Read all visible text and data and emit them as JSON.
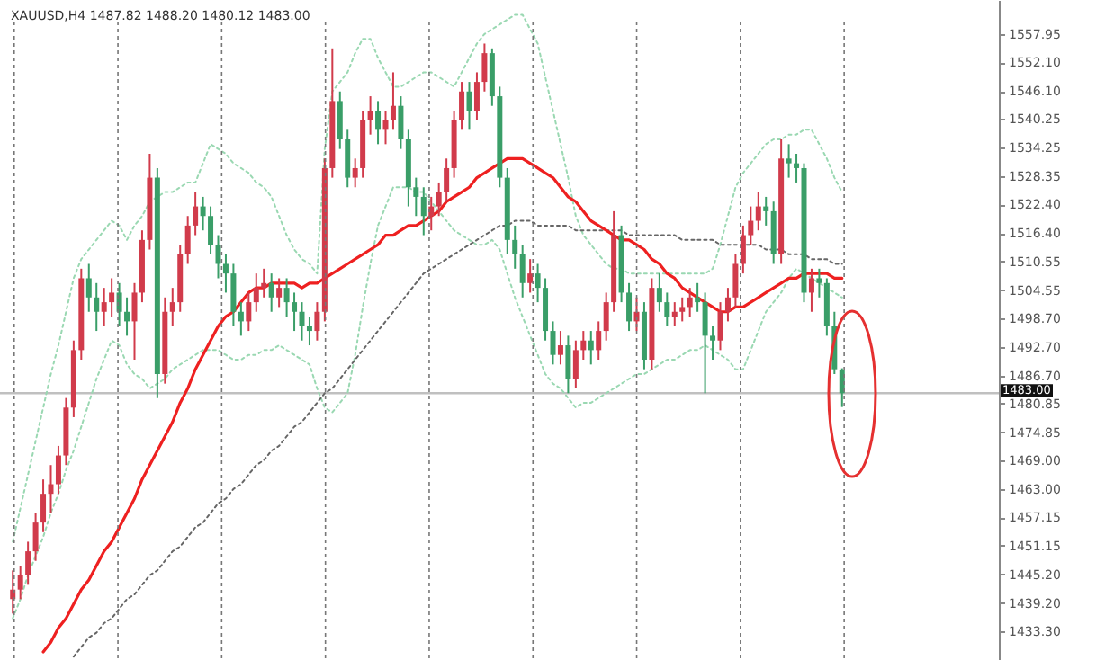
{
  "chart_data": {
    "type": "candlestick",
    "title": "XAUUSD,H4 1487.82 1488.20 1480.12 1483.00",
    "tick_labels": "y",
    "ylim": [
      1427.3,
      1565.1
    ],
    "yticks": [
      {
        "value": 1557.95,
        "label": "1557.95"
      },
      {
        "value": 1552.1,
        "label": "1552.10"
      },
      {
        "value": 1546.1,
        "label": "1546.10"
      },
      {
        "value": 1540.25,
        "label": "1540.25"
      },
      {
        "value": 1534.25,
        "label": "1534.25"
      },
      {
        "value": 1528.35,
        "label": "1528.35"
      },
      {
        "value": 1522.4,
        "label": "1522.40"
      },
      {
        "value": 1516.4,
        "label": "1516.40"
      },
      {
        "value": 1510.55,
        "label": "1510.55"
      },
      {
        "value": 1504.55,
        "label": "1504.55"
      },
      {
        "value": 1498.7,
        "label": "1498.70"
      },
      {
        "value": 1492.7,
        "label": "1492.70"
      },
      {
        "value": 1486.7,
        "label": "1486.70"
      },
      {
        "value": 1480.85,
        "label": "1480.85"
      },
      {
        "value": 1474.85,
        "label": "1474.85"
      },
      {
        "value": 1469,
        "label": "1469.00"
      },
      {
        "value": 1463,
        "label": "1463.00"
      },
      {
        "value": 1457.15,
        "label": "1457.15"
      },
      {
        "value": 1451.15,
        "label": "1451.15"
      },
      {
        "value": 1445.2,
        "label": "1445.20"
      },
      {
        "value": 1439.2,
        "label": "1439.20"
      },
      {
        "value": 1433.3,
        "label": "1433.30"
      }
    ],
    "categories": [
      null,
      null,
      null,
      null,
      null,
      null,
      null,
      null,
      null,
      null,
      null,
      null,
      null,
      null,
      null,
      null,
      null,
      null,
      null,
      null,
      null,
      null,
      null,
      null,
      null,
      null,
      null,
      null,
      null,
      null,
      null,
      null,
      null,
      null,
      null,
      null,
      null,
      null,
      null,
      null,
      null,
      null,
      null,
      null,
      null,
      null,
      null,
      null,
      null,
      null,
      null,
      null,
      null,
      null,
      null,
      null,
      null,
      null,
      null,
      null,
      null,
      null,
      null,
      null,
      null,
      null,
      null,
      null,
      null,
      null,
      null,
      null,
      null,
      null,
      null,
      null,
      null,
      null,
      null,
      null,
      null,
      null,
      null,
      null,
      null,
      null,
      null,
      null,
      null,
      null,
      null,
      null,
      null,
      null,
      null,
      null,
      null,
      null,
      null,
      null,
      null,
      null,
      null,
      null,
      null,
      null,
      null,
      null,
      null,
      null
    ],
    "ohlc": [
      [
        1440,
        1446,
        1437,
        1442
      ],
      [
        1442,
        1447,
        1440,
        1445
      ],
      [
        1445,
        1452,
        1443,
        1450
      ],
      [
        1450,
        1458,
        1448,
        1456
      ],
      [
        1456,
        1465,
        1454,
        1462
      ],
      [
        1462,
        1468,
        1458,
        1464
      ],
      [
        1464,
        1472,
        1462,
        1470
      ],
      [
        1470,
        1482,
        1468,
        1480
      ],
      [
        1480,
        1494,
        1478,
        1492
      ],
      [
        1492,
        1509,
        1490,
        1507
      ],
      [
        1507,
        1510,
        1500,
        1503
      ],
      [
        1503,
        1506,
        1496,
        1500
      ],
      [
        1500,
        1505,
        1497,
        1502
      ],
      [
        1502,
        1507,
        1499,
        1504
      ],
      [
        1504,
        1506,
        1497,
        1500
      ],
      [
        1500,
        1503,
        1495,
        1498
      ],
      [
        1498,
        1506,
        1490,
        1504
      ],
      [
        1504,
        1517,
        1502,
        1515
      ],
      [
        1515,
        1533,
        1513,
        1528
      ],
      [
        1528,
        1530,
        1482,
        1487
      ],
      [
        1487,
        1503,
        1485,
        1500
      ],
      [
        1500,
        1505,
        1497,
        1502
      ],
      [
        1502,
        1514,
        1500,
        1512
      ],
      [
        1512,
        1520,
        1510,
        1518
      ],
      [
        1518,
        1525,
        1516,
        1522
      ],
      [
        1522,
        1524,
        1517,
        1520
      ],
      [
        1520,
        1522,
        1512,
        1514
      ],
      [
        1514,
        1516,
        1507,
        1510
      ],
      [
        1510,
        1512,
        1504,
        1508
      ],
      [
        1508,
        1510,
        1497,
        1500
      ],
      [
        1500,
        1502,
        1495,
        1498
      ],
      [
        1498,
        1504,
        1496,
        1502
      ],
      [
        1502,
        1508,
        1500,
        1505
      ],
      [
        1505,
        1509,
        1503,
        1506
      ],
      [
        1506,
        1508,
        1500,
        1503
      ],
      [
        1503,
        1507,
        1501,
        1505
      ],
      [
        1505,
        1507,
        1499,
        1502
      ],
      [
        1502,
        1504,
        1496,
        1500
      ],
      [
        1500,
        1502,
        1494,
        1497
      ],
      [
        1497,
        1499,
        1493,
        1496
      ],
      [
        1496,
        1502,
        1494,
        1500
      ],
      [
        1500,
        1532,
        1498,
        1530
      ],
      [
        1530,
        1555,
        1528,
        1544
      ],
      [
        1544,
        1546,
        1534,
        1536
      ],
      [
        1536,
        1538,
        1526,
        1528
      ],
      [
        1528,
        1532,
        1526,
        1530
      ],
      [
        1530,
        1542,
        1528,
        1540
      ],
      [
        1540,
        1545,
        1537,
        1542
      ],
      [
        1542,
        1544,
        1535,
        1538
      ],
      [
        1538,
        1542,
        1535,
        1540
      ],
      [
        1540,
        1550,
        1538,
        1543
      ],
      [
        1543,
        1545,
        1534,
        1536
      ],
      [
        1536,
        1538,
        1522,
        1526
      ],
      [
        1526,
        1528,
        1520,
        1524
      ],
      [
        1524,
        1526,
        1516,
        1520
      ],
      [
        1520,
        1524,
        1517,
        1522
      ],
      [
        1522,
        1527,
        1520,
        1525
      ],
      [
        1525,
        1532,
        1523,
        1530
      ],
      [
        1530,
        1542,
        1528,
        1540
      ],
      [
        1540,
        1548,
        1538,
        1546
      ],
      [
        1546,
        1548,
        1538,
        1542
      ],
      [
        1542,
        1550,
        1540,
        1548
      ],
      [
        1548,
        1556,
        1546,
        1554
      ],
      [
        1554,
        1555,
        1543,
        1545
      ],
      [
        1545,
        1547,
        1526,
        1528
      ],
      [
        1528,
        1530,
        1512,
        1515
      ],
      [
        1515,
        1518,
        1509,
        1512
      ],
      [
        1512,
        1514,
        1503,
        1506
      ],
      [
        1506,
        1511,
        1504,
        1508
      ],
      [
        1508,
        1510,
        1502,
        1505
      ],
      [
        1505,
        1507,
        1494,
        1496
      ],
      [
        1496,
        1498,
        1489,
        1491
      ],
      [
        1491,
        1496,
        1489,
        1493
      ],
      [
        1493,
        1495,
        1483,
        1486
      ],
      [
        1486,
        1494,
        1484,
        1492
      ],
      [
        1492,
        1496,
        1490,
        1494
      ],
      [
        1494,
        1496,
        1489,
        1492
      ],
      [
        1492,
        1498,
        1490,
        1496
      ],
      [
        1496,
        1504,
        1494,
        1502
      ],
      [
        1502,
        1521,
        1500,
        1516
      ],
      [
        1516,
        1518,
        1502,
        1504
      ],
      [
        1504,
        1506,
        1496,
        1498
      ],
      [
        1498,
        1503,
        1496,
        1500
      ],
      [
        1500,
        1502,
        1488,
        1490
      ],
      [
        1490,
        1507,
        1488,
        1505
      ],
      [
        1505,
        1508,
        1500,
        1502
      ],
      [
        1502,
        1504,
        1497,
        1499
      ],
      [
        1499,
        1502,
        1497,
        1500
      ],
      [
        1500,
        1503,
        1498,
        1501
      ],
      [
        1501,
        1505,
        1499,
        1503
      ],
      [
        1503,
        1506,
        1500,
        1502
      ],
      [
        1502,
        1504,
        1483,
        1495
      ],
      [
        1495,
        1497,
        1490,
        1494
      ],
      [
        1494,
        1502,
        1492,
        1500
      ],
      [
        1500,
        1505,
        1498,
        1503
      ],
      [
        1503,
        1512,
        1501,
        1510
      ],
      [
        1510,
        1518,
        1508,
        1516
      ],
      [
        1516,
        1522,
        1514,
        1519
      ],
      [
        1519,
        1525,
        1517,
        1522
      ],
      [
        1522,
        1524,
        1518,
        1521
      ],
      [
        1521,
        1523,
        1510,
        1512
      ],
      [
        1512,
        1536,
        1510,
        1532
      ],
      [
        1532,
        1535,
        1528,
        1531
      ],
      [
        1531,
        1533,
        1527,
        1530
      ],
      [
        1530,
        1531,
        1502,
        1504
      ],
      [
        1504,
        1509,
        1500,
        1507
      ],
      [
        1507,
        1509,
        1503,
        1506
      ],
      [
        1506,
        1507,
        1495,
        1497
      ],
      [
        1497,
        1500,
        1487,
        1488
      ],
      [
        1487.82,
        1488.2,
        1480.12,
        1483
      ]
    ],
    "colors": [
      "#d13b4b",
      "#d13b4b",
      "#d13b4b",
      "#d13b4b",
      "#d13b4b",
      "#d13b4b",
      "#d13b4b",
      "#d13b4b",
      "#d13b4b",
      "#d13b4b",
      "#3a9e68",
      "#3a9e68",
      "#d13b4b",
      "#d13b4b",
      "#3a9e68",
      "#3a9e68",
      "#d13b4b",
      "#d13b4b",
      "#d13b4b",
      "#3a9e68",
      "#d13b4b",
      "#d13b4b",
      "#d13b4b",
      "#d13b4b",
      "#d13b4b",
      "#3a9e68",
      "#3a9e68",
      "#3a9e68",
      "#3a9e68",
      "#3a9e68",
      "#3a9e68",
      "#d13b4b",
      "#d13b4b",
      "#d13b4b",
      "#3a9e68",
      "#d13b4b",
      "#3a9e68",
      "#3a9e68",
      "#3a9e68",
      "#3a9e68",
      "#d13b4b",
      "#d13b4b",
      "#d13b4b",
      "#3a9e68",
      "#3a9e68",
      "#d13b4b",
      "#d13b4b",
      "#d13b4b",
      "#3a9e68",
      "#d13b4b",
      "#d13b4b",
      "#3a9e68",
      "#3a9e68",
      "#3a9e68",
      "#3a9e68",
      "#d13b4b",
      "#d13b4b",
      "#d13b4b",
      "#d13b4b",
      "#d13b4b",
      "#3a9e68",
      "#d13b4b",
      "#d13b4b",
      "#3a9e68",
      "#3a9e68",
      "#3a9e68",
      "#3a9e68",
      "#3a9e68",
      "#d13b4b",
      "#3a9e68",
      "#3a9e68",
      "#3a9e68",
      "#d13b4b",
      "#3a9e68",
      "#d13b4b",
      "#d13b4b",
      "#3a9e68",
      "#d13b4b",
      "#d13b4b",
      "#d13b4b",
      "#3a9e68",
      "#3a9e68",
      "#d13b4b",
      "#3a9e68",
      "#d13b4b",
      "#3a9e68",
      "#3a9e68",
      "#d13b4b",
      "#d13b4b",
      "#d13b4b",
      "#3a9e68",
      "#3a9e68",
      "#3a9e68",
      "#d13b4b",
      "#d13b4b",
      "#d13b4b",
      "#d13b4b",
      "#d13b4b",
      "#d13b4b",
      "#3a9e68",
      "#3a9e68",
      "#d13b4b",
      "#3a9e68",
      "#3a9e68",
      "#3a9e68",
      "#d13b4b",
      "#3a9e68",
      "#3a9e68",
      "#3a9e68",
      "#3a9e68"
    ],
    "series": [
      {
        "type": "line",
        "color": "#9ad8b2",
        "line_style": "dotted",
        "values": [
          1452,
          1459,
          1466,
          1473,
          1480,
          1487,
          1493,
          1500,
          1507,
          1511,
          1513,
          1515,
          1517,
          1519,
          1518,
          1515,
          1518,
          1520,
          1523,
          1524,
          1525,
          1525,
          1526,
          1527,
          1527,
          1531,
          1535,
          1534,
          1533,
          1531,
          1530,
          1529,
          1527,
          1526,
          1524,
          1520,
          1516,
          1513,
          1511,
          1510,
          1508,
          1534,
          1546,
          1548,
          1550,
          1554,
          1557,
          1557,
          1553,
          1550,
          1547,
          1547,
          1548,
          1549,
          1550,
          1550,
          1549,
          1548,
          1547,
          1550,
          1553,
          1556,
          1558,
          1559,
          1560,
          1561,
          1562,
          1562,
          1559,
          1556,
          1549,
          1542,
          1535,
          1528,
          1520,
          1516,
          1514,
          1512,
          1510,
          1509,
          1509,
          1508,
          1508,
          1508,
          1508,
          1508,
          1508,
          1508,
          1508,
          1508,
          1508,
          1508,
          1509,
          1514,
          1520,
          1526,
          1529,
          1531,
          1533,
          1535,
          1536,
          1536,
          1537,
          1537,
          1538,
          1538,
          1535,
          1532,
          1528,
          1525
        ]
      },
      {
        "type": "line",
        "color": "#9ad8b2",
        "line_style": "dotted",
        "values": [
          1436,
          1440,
          1445,
          1449,
          1453,
          1458,
          1462,
          1467,
          1471,
          1476,
          1481,
          1486,
          1490,
          1494,
          1493,
          1489,
          1487,
          1486,
          1484,
          1485,
          1486,
          1488,
          1489,
          1490,
          1491,
          1492,
          1492,
          1492,
          1491,
          1490,
          1490,
          1491,
          1491,
          1492,
          1492,
          1493,
          1492,
          1491,
          1490,
          1489,
          1484,
          1480,
          1479,
          1481,
          1483,
          1491,
          1501,
          1510,
          1518,
          1522,
          1526,
          1526,
          1526,
          1525,
          1525,
          1523,
          1521,
          1519,
          1517,
          1516,
          1515,
          1514,
          1514,
          1515,
          1513,
          1508,
          1503,
          1499,
          1495,
          1491,
          1487,
          1485,
          1484,
          1482,
          1480,
          1481,
          1481,
          1482,
          1483,
          1484,
          1485,
          1486,
          1487,
          1487,
          1488,
          1489,
          1490,
          1490,
          1491,
          1492,
          1492,
          1493,
          1492,
          1491,
          1490,
          1488,
          1488,
          1492,
          1496,
          1500,
          1502,
          1504,
          1507,
          1509,
          1508,
          1507,
          1506,
          1505,
          1504,
          1503
        ]
      },
      {
        "type": "line",
        "color": "#666666",
        "line_style": "dotted",
        "values": [
          null,
          null,
          null,
          null,
          null,
          null,
          null,
          null,
          1428,
          1430,
          1432,
          1433,
          1435,
          1436,
          1438,
          1440,
          1441,
          1443,
          1445,
          1446,
          1448,
          1450,
          1451,
          1453,
          1455,
          1456,
          1458,
          1460,
          1461,
          1463,
          1464,
          1466,
          1468,
          1469,
          1471,
          1472,
          1474,
          1476,
          1477,
          1479,
          1481,
          1483,
          1484,
          1486,
          1488,
          1490,
          1492,
          1494,
          1496,
          1498,
          1500,
          1502,
          1504,
          1506,
          1508,
          1509,
          1510,
          1511,
          1512,
          1513,
          1514,
          1515,
          1516,
          1517,
          1518,
          1518,
          1519,
          1519,
          1519,
          1518,
          1518,
          1518,
          1518,
          1518,
          1517,
          1517,
          1517,
          1517,
          1517,
          1517,
          1517,
          1516,
          1516,
          1516,
          1516,
          1516,
          1516,
          1516,
          1515,
          1515,
          1515,
          1515,
          1515,
          1514,
          1514,
          1514,
          1514,
          1514,
          1514,
          1513,
          1513,
          1513,
          1512,
          1512,
          1512,
          1511,
          1511,
          1511,
          1510,
          1510
        ]
      },
      {
        "type": "line",
        "color": "#ee2020",
        "line_style": "solid",
        "values": [
          null,
          null,
          null,
          null,
          1429,
          1431,
          1434,
          1436,
          1439,
          1442,
          1444,
          1447,
          1450,
          1452,
          1455,
          1458,
          1461,
          1465,
          1468,
          1471,
          1474,
          1477,
          1481,
          1484,
          1488,
          1491,
          1494,
          1497,
          1499,
          1500,
          1502,
          1504,
          1505,
          1505,
          1506,
          1506,
          1506,
          1506,
          1505,
          1506,
          1506,
          1507,
          1508,
          1509,
          1510,
          1511,
          1512,
          1513,
          1514,
          1516,
          1516,
          1517,
          1518,
          1518,
          1519,
          1520,
          1521,
          1523,
          1524,
          1525,
          1526,
          1528,
          1529,
          1530,
          1531,
          1532,
          1532,
          1532,
          1531,
          1530,
          1529,
          1528,
          1526,
          1524,
          1523,
          1521,
          1519,
          1518,
          1517,
          1516,
          1515,
          1515,
          1514,
          1513,
          1511,
          1510,
          1508,
          1507,
          1505,
          1504,
          1503,
          1502,
          1501,
          1500,
          1500,
          1501,
          1501,
          1502,
          1503,
          1504,
          1505,
          1506,
          1507,
          1507,
          1508,
          1508,
          1508,
          1508,
          1507,
          1507
        ]
      }
    ],
    "ref_lines": [
      {
        "axis": "y",
        "value": 1483,
        "label": "1483.00",
        "color": "#c0c0c0"
      }
    ]
  }
}
